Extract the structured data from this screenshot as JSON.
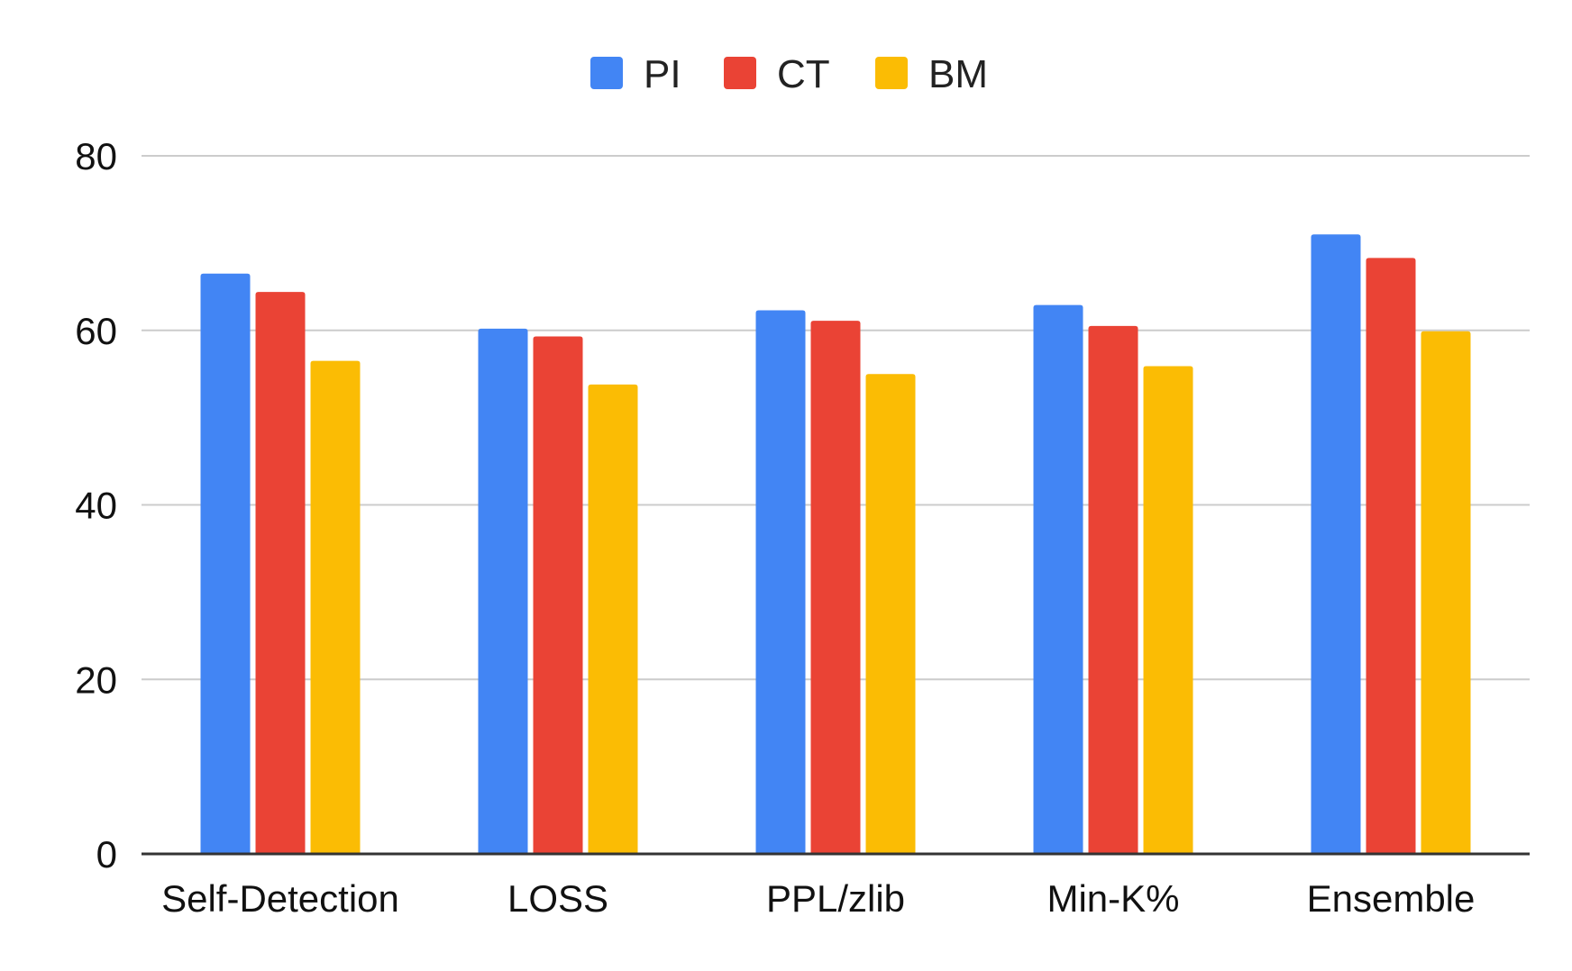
{
  "chart_data": {
    "type": "bar",
    "title": "",
    "xlabel": "",
    "ylabel": "",
    "categories": [
      "Self-Detection",
      "LOSS",
      "PPL/zlib",
      "Min-K%",
      "Ensemble"
    ],
    "series": [
      {
        "name": "PI",
        "color": "#4285F4",
        "values": [
          66.5,
          60.2,
          62.3,
          62.9,
          71.0
        ]
      },
      {
        "name": "CT",
        "color": "#EA4335",
        "values": [
          64.4,
          59.3,
          61.1,
          60.5,
          68.3
        ]
      },
      {
        "name": "BM",
        "color": "#FBBC04",
        "values": [
          56.5,
          53.8,
          55.0,
          55.9,
          59.9
        ]
      }
    ],
    "ylim": [
      0,
      80
    ],
    "yticks": [
      "0",
      "20",
      "40",
      "60",
      "80"
    ],
    "ytick_values": [
      0,
      20,
      40,
      60,
      80
    ],
    "grid": true,
    "legend_position": "top-center"
  }
}
